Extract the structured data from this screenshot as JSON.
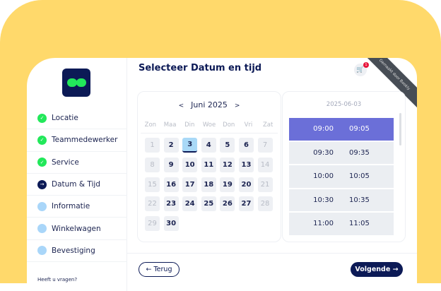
{
  "sidebar": {
    "steps": [
      {
        "label": "Locatie",
        "state": "done"
      },
      {
        "label": "Teammedewerker",
        "state": "done"
      },
      {
        "label": "Service",
        "state": "done"
      },
      {
        "label": "Datum & Tijd",
        "state": "current"
      },
      {
        "label": "Informatie",
        "state": "todo"
      },
      {
        "label": "Winkelwagen",
        "state": "todo"
      },
      {
        "label": "Bevestiging",
        "state": "todo"
      }
    ],
    "help": "Heeft u vragen?"
  },
  "header": {
    "title": "Selecteer Datum en tijd",
    "cart_count": "1",
    "ribbon": "Gemaakt door Bookly"
  },
  "calendar": {
    "month": "Juni 2025",
    "prev": "<",
    "next": ">",
    "weekdays": [
      "Zon",
      "Maa",
      "Din",
      "Woe",
      "Don",
      "Vri",
      "Zat"
    ],
    "days": [
      {
        "d": "1",
        "dis": true
      },
      {
        "d": "2"
      },
      {
        "d": "3",
        "sel": true
      },
      {
        "d": "4"
      },
      {
        "d": "5"
      },
      {
        "d": "6"
      },
      {
        "d": "7",
        "dis": true
      },
      {
        "d": "8",
        "dis": true
      },
      {
        "d": "9"
      },
      {
        "d": "10"
      },
      {
        "d": "11"
      },
      {
        "d": "12"
      },
      {
        "d": "13"
      },
      {
        "d": "14",
        "dis": true
      },
      {
        "d": "15",
        "dis": true
      },
      {
        "d": "16"
      },
      {
        "d": "17"
      },
      {
        "d": "18"
      },
      {
        "d": "19"
      },
      {
        "d": "20"
      },
      {
        "d": "21",
        "dis": true
      },
      {
        "d": "22",
        "dis": true
      },
      {
        "d": "23"
      },
      {
        "d": "24"
      },
      {
        "d": "25"
      },
      {
        "d": "26"
      },
      {
        "d": "27"
      },
      {
        "d": "28",
        "dis": true
      },
      {
        "d": "29",
        "dis": true
      },
      {
        "d": "30"
      }
    ]
  },
  "times": {
    "date": "2025-06-03",
    "slots": [
      [
        "09:00",
        "09:05"
      ],
      [
        "09:30",
        "09:35"
      ],
      [
        "10:00",
        "10:05"
      ],
      [
        "10:30",
        "10:35"
      ],
      [
        "11:00",
        "11:05"
      ]
    ],
    "active_index": 0
  },
  "footer": {
    "back": "← Terug",
    "next": "Volgende →"
  }
}
